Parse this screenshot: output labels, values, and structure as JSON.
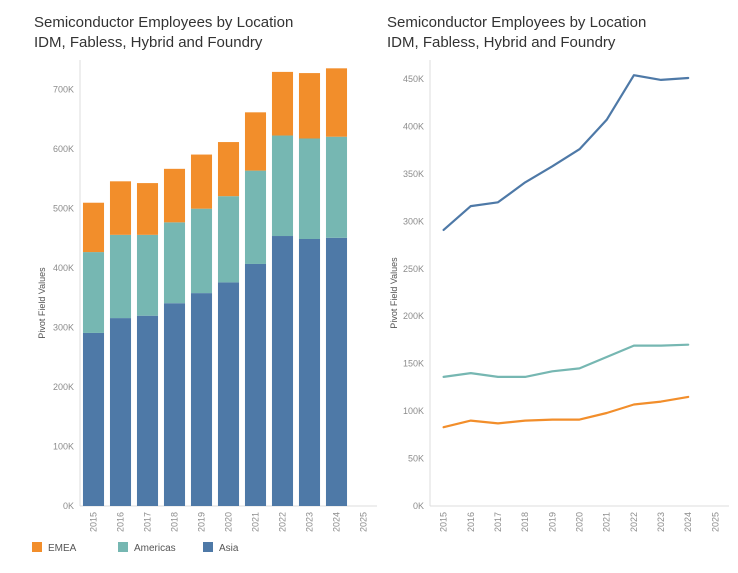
{
  "charts": {
    "left_title_line1": "Semiconductor Employees by Location",
    "left_title_line2": "IDM, Fabless, Hybrid and Foundry",
    "right_title_line1": "Semiconductor Employees by Location",
    "right_title_line2": "IDM, Fabless, Hybrid and Foundry"
  },
  "legend": [
    {
      "label": "EMEA",
      "color": "#f28e2b"
    },
    {
      "label": "Americas",
      "color": "#76b7b2"
    },
    {
      "label": "Asia",
      "color": "#4e79a7"
    }
  ],
  "chart_data": [
    {
      "type": "bar",
      "stacked": true,
      "title": "Semiconductor Employees by Location\nIDM, Fabless, Hybrid and Foundry",
      "ylabel": "Pivot Field Values",
      "xlabel": "",
      "categories": [
        "2015",
        "2016",
        "2017",
        "2018",
        "2019",
        "2020",
        "2021",
        "2022",
        "2023",
        "2024",
        "2025"
      ],
      "ylim": [
        0,
        750000
      ],
      "yticks": [
        0,
        100000,
        200000,
        300000,
        400000,
        500000,
        600000,
        700000
      ],
      "ytick_labels": [
        "0K",
        "100K",
        "200K",
        "300K",
        "400K",
        "500K",
        "600K",
        "700K"
      ],
      "grid": false,
      "legend_position": "bottom",
      "series": [
        {
          "name": "Asia",
          "color": "#4e79a7",
          "values": [
            291000,
            316000,
            320000,
            341000,
            358000,
            376000,
            407000,
            454000,
            449000,
            451000,
            null
          ]
        },
        {
          "name": "Americas",
          "color": "#76b7b2",
          "values": [
            136000,
            140000,
            136000,
            136000,
            142000,
            145000,
            157000,
            169000,
            169000,
            170000,
            null
          ]
        },
        {
          "name": "EMEA",
          "color": "#f28e2b",
          "values": [
            83000,
            90000,
            87000,
            90000,
            91000,
            91000,
            98000,
            107000,
            110000,
            115000,
            null
          ]
        }
      ]
    },
    {
      "type": "line",
      "title": "Semiconductor Employees by Location\nIDM, Fabless, Hybrid and Foundry",
      "ylabel": "Pivot Field Values",
      "xlabel": "",
      "categories": [
        "2015",
        "2016",
        "2017",
        "2018",
        "2019",
        "2020",
        "2021",
        "2022",
        "2023",
        "2024",
        "2025"
      ],
      "ylim": [
        0,
        470000
      ],
      "yticks": [
        0,
        50000,
        100000,
        150000,
        200000,
        250000,
        300000,
        350000,
        400000,
        450000
      ],
      "ytick_labels": [
        "0K",
        "50K",
        "100K",
        "150K",
        "200K",
        "250K",
        "300K",
        "350K",
        "400K",
        "450K"
      ],
      "grid": false,
      "series": [
        {
          "name": "Asia",
          "color": "#4e79a7",
          "values": [
            291000,
            316000,
            320000,
            341000,
            358000,
            376000,
            407000,
            454000,
            449000,
            451000,
            null
          ]
        },
        {
          "name": "Americas",
          "color": "#76b7b2",
          "values": [
            136000,
            140000,
            136000,
            136000,
            142000,
            145000,
            157000,
            169000,
            169000,
            170000,
            null
          ]
        },
        {
          "name": "EMEA",
          "color": "#f28e2b",
          "values": [
            83000,
            90000,
            87000,
            90000,
            91000,
            91000,
            98000,
            107000,
            110000,
            115000,
            null
          ]
        }
      ]
    }
  ]
}
